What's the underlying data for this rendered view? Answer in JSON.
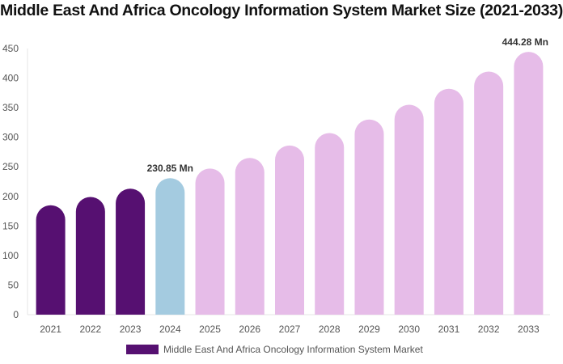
{
  "chart_data": {
    "type": "bar",
    "title": "Middle East And Africa Oncology Information System Market Size (2021-2033)",
    "categories": [
      "2021",
      "2022",
      "2023",
      "2024",
      "2025",
      "2026",
      "2027",
      "2028",
      "2029",
      "2030",
      "2031",
      "2032",
      "2033"
    ],
    "series": [
      {
        "name": "Middle East And Africa Oncology Information System Market",
        "values": [
          185,
          199,
          213,
          230.85,
          247,
          265,
          286,
          307,
          330,
          355,
          382,
          411,
          444.28
        ]
      }
    ],
    "data_labels": [
      {
        "index": 3,
        "text": "230.85 Mn"
      },
      {
        "index": 12,
        "text": "444.28 Mn"
      }
    ],
    "ylim": [
      0,
      450
    ],
    "yticks": [
      0,
      50,
      100,
      150,
      200,
      250,
      300,
      350,
      400,
      450
    ],
    "grid": false,
    "legend_position": "bottom",
    "colors": {
      "historical": "#561071",
      "base_year": "#a4cbe0",
      "forecast": "#e6bce8"
    },
    "color_groups": [
      "historical",
      "historical",
      "historical",
      "base_year",
      "forecast",
      "forecast",
      "forecast",
      "forecast",
      "forecast",
      "forecast",
      "forecast",
      "forecast",
      "forecast"
    ]
  }
}
